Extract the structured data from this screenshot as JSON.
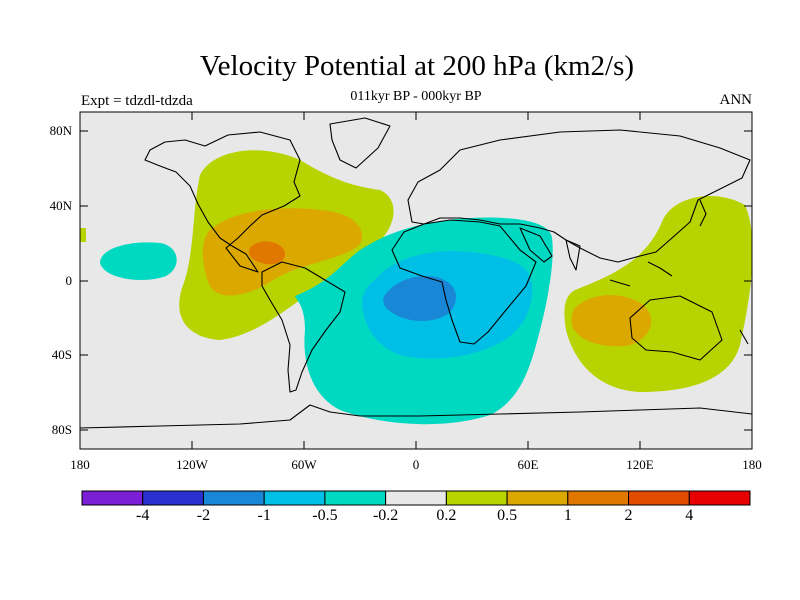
{
  "title": "Velocity Potential at 200 hPa (km2/s)",
  "subtitle": "011kyr BP - 000kyr BP",
  "experiment": "Expt = tdzdl-tdzda",
  "season": "ANN",
  "lat_ticks": [
    "80N",
    "40N",
    "0",
    "40S",
    "80S"
  ],
  "lon_ticks": [
    "180",
    "120W",
    "60W",
    "0",
    "60E",
    "120E",
    "180"
  ],
  "colorbar": {
    "labels": [
      "-4",
      "-2",
      "-1",
      "-0.5",
      "-0.2",
      "0.2",
      "0.5",
      "1",
      "2",
      "4"
    ],
    "colors": [
      "#7a1fd6",
      "#2a2fd0",
      "#1a86d6",
      "#00bfe6",
      "#00d9c2",
      "#e8e8e8",
      "#b8d400",
      "#dba800",
      "#e07800",
      "#e24a00",
      "#e60000"
    ]
  },
  "colors": {
    "land_outline": "#000000",
    "neutral": "#e8e8e8"
  }
}
